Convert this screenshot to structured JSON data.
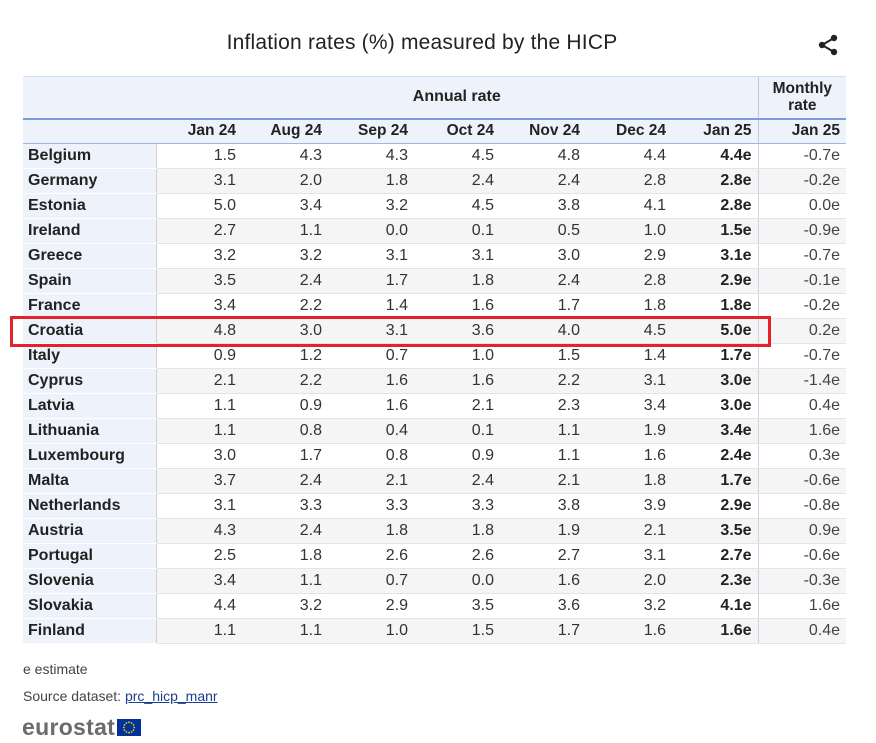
{
  "title": "Inflation rates (%) measured by the HICP",
  "header": {
    "annual_group": "Annual rate",
    "monthly_group": "Monthly rate",
    "columns": [
      "Jan 24",
      "Aug 24",
      "Sep 24",
      "Oct 24",
      "Nov 24",
      "Dec 24",
      "Jan 25",
      "Jan 25"
    ]
  },
  "rows": [
    {
      "country": "Belgium",
      "values": [
        "1.5",
        "4.3",
        "4.3",
        "4.5",
        "4.8",
        "4.4",
        "4.4e",
        "-0.7e"
      ]
    },
    {
      "country": "Germany",
      "values": [
        "3.1",
        "2.0",
        "1.8",
        "2.4",
        "2.4",
        "2.8",
        "2.8e",
        "-0.2e"
      ]
    },
    {
      "country": "Estonia",
      "values": [
        "5.0",
        "3.4",
        "3.2",
        "4.5",
        "3.8",
        "4.1",
        "2.8e",
        "0.0e"
      ]
    },
    {
      "country": "Ireland",
      "values": [
        "2.7",
        "1.1",
        "0.0",
        "0.1",
        "0.5",
        "1.0",
        "1.5e",
        "-0.9e"
      ]
    },
    {
      "country": "Greece",
      "values": [
        "3.2",
        "3.2",
        "3.1",
        "3.1",
        "3.0",
        "2.9",
        "3.1e",
        "-0.7e"
      ]
    },
    {
      "country": "Spain",
      "values": [
        "3.5",
        "2.4",
        "1.7",
        "1.8",
        "2.4",
        "2.8",
        "2.9e",
        "-0.1e"
      ]
    },
    {
      "country": "France",
      "values": [
        "3.4",
        "2.2",
        "1.4",
        "1.6",
        "1.7",
        "1.8",
        "1.8e",
        "-0.2e"
      ]
    },
    {
      "country": "Croatia",
      "values": [
        "4.8",
        "3.0",
        "3.1",
        "3.6",
        "4.0",
        "4.5",
        "5.0e",
        "0.2e"
      ]
    },
    {
      "country": "Italy",
      "values": [
        "0.9",
        "1.2",
        "0.7",
        "1.0",
        "1.5",
        "1.4",
        "1.7e",
        "-0.7e"
      ]
    },
    {
      "country": "Cyprus",
      "values": [
        "2.1",
        "2.2",
        "1.6",
        "1.6",
        "2.2",
        "3.1",
        "3.0e",
        "-1.4e"
      ]
    },
    {
      "country": "Latvia",
      "values": [
        "1.1",
        "0.9",
        "1.6",
        "2.1",
        "2.3",
        "3.4",
        "3.0e",
        "0.4e"
      ]
    },
    {
      "country": "Lithuania",
      "values": [
        "1.1",
        "0.8",
        "0.4",
        "0.1",
        "1.1",
        "1.9",
        "3.4e",
        "1.6e"
      ]
    },
    {
      "country": "Luxembourg",
      "values": [
        "3.0",
        "1.7",
        "0.8",
        "0.9",
        "1.1",
        "1.6",
        "2.4e",
        "0.3e"
      ]
    },
    {
      "country": "Malta",
      "values": [
        "3.7",
        "2.4",
        "2.1",
        "2.4",
        "2.1",
        "1.8",
        "1.7e",
        "-0.6e"
      ]
    },
    {
      "country": "Netherlands",
      "values": [
        "3.1",
        "3.3",
        "3.3",
        "3.3",
        "3.8",
        "3.9",
        "2.9e",
        "-0.8e"
      ]
    },
    {
      "country": "Austria",
      "values": [
        "4.3",
        "2.4",
        "1.8",
        "1.8",
        "1.9",
        "2.1",
        "3.5e",
        "0.9e"
      ]
    },
    {
      "country": "Portugal",
      "values": [
        "2.5",
        "1.8",
        "2.6",
        "2.6",
        "2.7",
        "3.1",
        "2.7e",
        "-0.6e"
      ]
    },
    {
      "country": "Slovenia",
      "values": [
        "3.4",
        "1.1",
        "0.7",
        "0.0",
        "1.6",
        "2.0",
        "2.3e",
        "-0.3e"
      ]
    },
    {
      "country": "Slovakia",
      "values": [
        "4.4",
        "3.2",
        "2.9",
        "3.5",
        "3.6",
        "3.2",
        "4.1e",
        "1.6e"
      ]
    },
    {
      "country": "Finland",
      "values": [
        "1.1",
        "1.1",
        "1.0",
        "1.5",
        "1.7",
        "1.6",
        "1.6e",
        "0.4e"
      ]
    }
  ],
  "highlighted_country": "Croatia",
  "footnote": "e estimate",
  "source_label": "Source dataset:",
  "source_link": "prc_hicp_manr",
  "logo_text": "eurostat",
  "colors": {
    "highlight": "#e3232b",
    "header_bg": "#eef3fb",
    "header_rule": "#7a9ddc",
    "logo_gray": "#6b6b6b",
    "eu_blue": "#003399",
    "eu_star": "#ffcc00"
  },
  "icons": {
    "share": "share-icon",
    "flag": "eu-flag-icon"
  },
  "chart_data": {
    "type": "table",
    "title": "Inflation rates (%) measured by the HICP",
    "column_groups": [
      {
        "name": "Annual rate",
        "columns": [
          "Jan 24",
          "Aug 24",
          "Sep 24",
          "Oct 24",
          "Nov 24",
          "Dec 24",
          "Jan 25"
        ]
      },
      {
        "name": "Monthly rate",
        "columns": [
          "Jan 25"
        ]
      }
    ],
    "row_labels": [
      "Belgium",
      "Germany",
      "Estonia",
      "Ireland",
      "Greece",
      "Spain",
      "France",
      "Croatia",
      "Italy",
      "Cyprus",
      "Latvia",
      "Lithuania",
      "Luxembourg",
      "Malta",
      "Netherlands",
      "Austria",
      "Portugal",
      "Slovenia",
      "Slovakia",
      "Finland"
    ],
    "note": "e estimate"
  }
}
